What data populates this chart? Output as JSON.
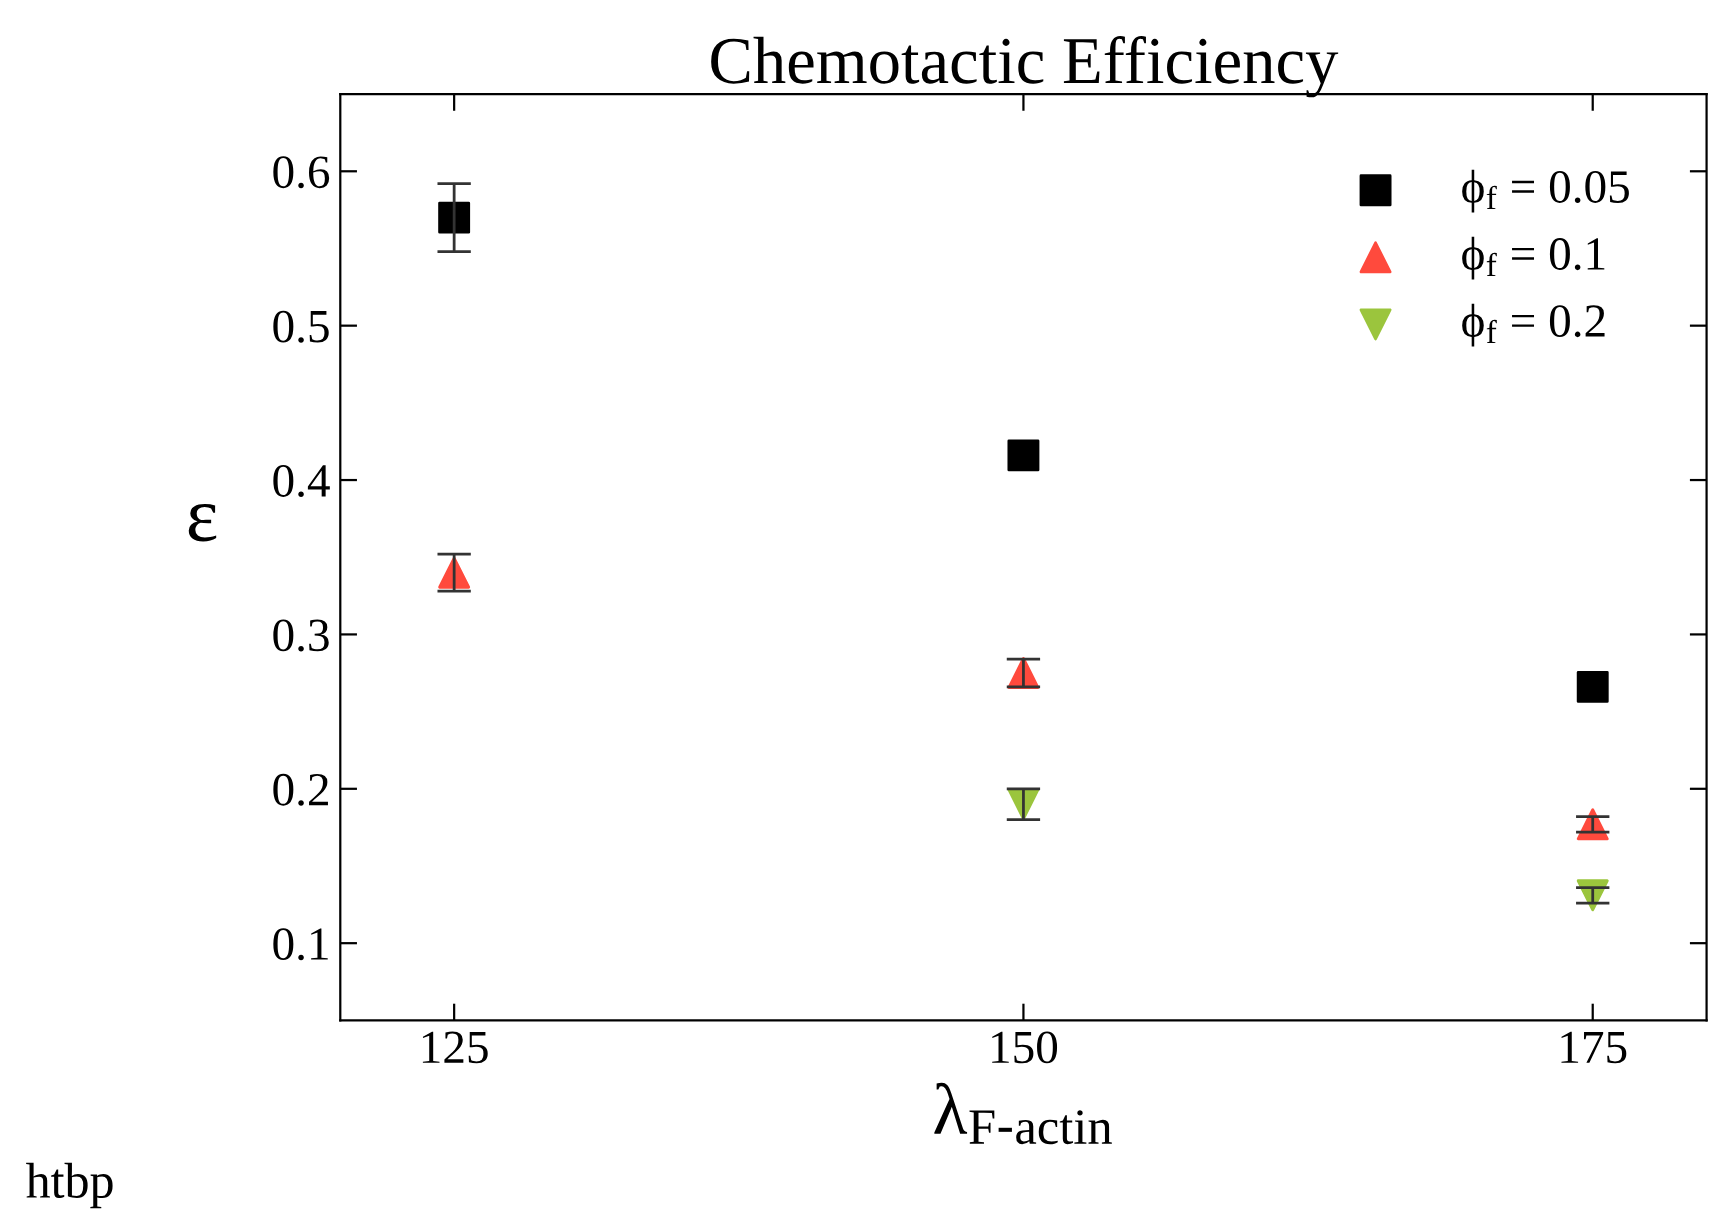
{
  "chart_data": {
    "type": "scatter",
    "title": "Chemotactic Efficiency",
    "xlabel": "λ$_{F-actin}$",
    "ylabel": "ε",
    "x": [
      125,
      150,
      175
    ],
    "series": [
      {
        "name": "ϕ$_{f}$ = 0.05",
        "color": "#000000",
        "marker": "square",
        "values": [
          0.57,
          0.416,
          0.266
        ],
        "errors": [
          0.022,
          null,
          null
        ]
      },
      {
        "name": "ϕ$_{f}$ = 0.1",
        "color": "#ff4a3d",
        "marker": "triangle",
        "values": [
          0.34,
          0.275,
          0.177
        ],
        "errors": [
          0.012,
          0.009,
          0.005
        ]
      },
      {
        "name": "ϕ$_{f}$ = 0.2",
        "color": "#9bc53d",
        "marker": "triangle_down",
        "values": [
          null,
          0.19,
          0.131
        ],
        "errors": [
          null,
          0.01,
          0.005
        ]
      }
    ],
    "xlim": [
      120,
      180
    ],
    "xticks": [
      125,
      150,
      175
    ],
    "ylim": [
      0.05,
      0.65
    ],
    "yticks": [
      0.1,
      0.2,
      0.3,
      0.4,
      0.5,
      0.6
    ],
    "grid": false,
    "legend": "top right",
    "annotations": [
      "htbp"
    ]
  }
}
